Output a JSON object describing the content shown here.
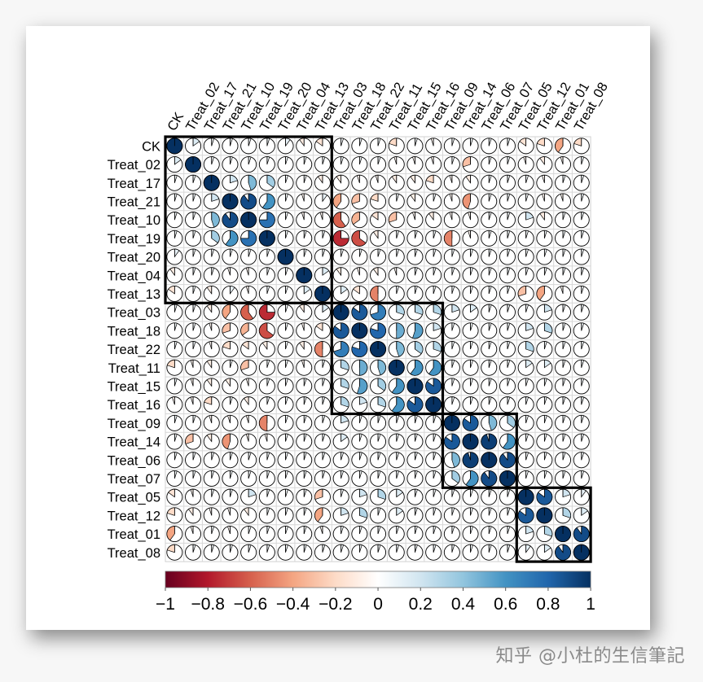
{
  "watermark": "知乎 @小杜的生信筆記",
  "chart_data": {
    "type": "heatmap",
    "subtype": "correlation-matrix-pie",
    "labels": [
      "CK",
      "Treat_02",
      "Treat_17",
      "Treat_21",
      "Treat_10",
      "Treat_19",
      "Treat_20",
      "Treat_04",
      "Treat_13",
      "Treat_03",
      "Treat_18",
      "Treat_22",
      "Treat_11",
      "Treat_15",
      "Treat_16",
      "Treat_09",
      "Treat_14",
      "Treat_06",
      "Treat_07",
      "Treat_05",
      "Treat_12",
      "Treat_01",
      "Treat_08"
    ],
    "color_scale": {
      "min": -1,
      "max": 1,
      "ticks": [
        "−1",
        "−0.8",
        "−0.6",
        "−0.4",
        "−0.2",
        "0",
        "0.2",
        "0.4",
        "0.6",
        "0.8",
        "1"
      ],
      "colors": [
        "#67001f",
        "#b2182b",
        "#d6604d",
        "#f4a582",
        "#fddbc7",
        "#ffffff",
        "#d1e5f0",
        "#92c5de",
        "#4393c3",
        "#2166ac",
        "#053061"
      ]
    },
    "clusters": [
      [
        1,
        9
      ],
      [
        10,
        15
      ],
      [
        16,
        19
      ],
      [
        20,
        23
      ]
    ],
    "upper_values": [
      [
        0.15,
        0.05,
        0.05,
        0.02,
        0.05,
        0.05,
        0.1,
        -0.1,
        0.15,
        0.1,
        -0.1,
        -0.3,
        -0.1,
        -0.05,
        -0.05,
        0.05,
        -0.3,
        -0.1,
        0.15,
        -0.2,
        -0.6,
        -0.2
      ],
      [
        0.1,
        0.05,
        0.05,
        0.05,
        0.05,
        -0.15,
        -0.1,
        -0.1,
        -0.15,
        -0.05,
        -0.05,
        0.05,
        0.05,
        -0.05,
        -0.3,
        -0.1,
        -0.05,
        0.05,
        0.05,
        0.1,
        0.05
      ],
      [
        0.2,
        0.05,
        0.05,
        0.1,
        -0.1,
        -0.05,
        -0.3,
        -0.05,
        -0.1,
        -0.1,
        -0.2,
        0.05,
        0.1,
        -0.1,
        -0.5,
        -0.05,
        -0.05,
        0.15,
        -0.1,
        0.05
      ],
      [
        0.45,
        0.35,
        0.05,
        -0.05,
        0.1,
        -0.4,
        -0.3,
        0.05,
        -0.05,
        0.1,
        -0.3,
        0.05,
        -0.05,
        -0.1,
        -0.05,
        0.15,
        -0.05,
        0.05,
        0.1
      ],
      [
        0.9,
        0.6,
        0.05,
        -0.05,
        -0.05,
        -0.6,
        -0.35,
        -0.15,
        -0.3,
        -0.05,
        -0.1,
        0.05,
        -0.1,
        -0.05,
        -0.1,
        0.1,
        0.05,
        0.15
      ],
      [
        0.75,
        0.05,
        0.05,
        -0.1,
        -0.75,
        -0.65,
        0.05,
        -0.1,
        -0.05,
        0.1,
        -0.05,
        0.05,
        -0.1,
        -0.05,
        0.05,
        0.1,
        0.05
      ],
      [
        0.05,
        0.05,
        0.05,
        0.05,
        0.05,
        0.05,
        0.05,
        0.05,
        0.05,
        0.05,
        0.05,
        0.05,
        0.05,
        0.05,
        0.05,
        0.05
      ],
      [
        0.15,
        0.2,
        0.15,
        0.1,
        0.05,
        0.05,
        0.05,
        0.05,
        -0.05,
        0.05,
        0.05,
        0.05,
        0.05,
        0.05,
        0.05
      ],
      [
        0.15,
        -0.15,
        -0.2,
        -0.5,
        -0.05,
        0.1,
        0.05,
        -0.05,
        0.05,
        0.2,
        0.15,
        -0.2,
        -0.3,
        -0.1,
        0.05,
        0.05,
        0.05,
        0.05,
        0.05,
        0.05,
        0.05,
        0.05
      ],
      [
        -0.3,
        -0.1,
        -0.1,
        -0.2,
        -0.1,
        -0.05,
        0.05,
        0.05,
        -0.05,
        0.05,
        0.05,
        0.05,
        0.05,
        0.05
      ],
      [
        -0.05,
        -0.05,
        0.05,
        0.05,
        0.05,
        -0.05,
        0.05,
        -0.05,
        0.05,
        0.05,
        0.05,
        -0.05,
        0.05
      ]
    ],
    "note_upper_values": "partial upper-triangle estimates per row; remaining cells default to small values",
    "lower_values": [
      [
        0.15
      ],
      [
        0.05,
        0.05
      ],
      [
        0.05,
        0.05,
        0.2
      ],
      [
        0.05,
        0.05,
        0.45,
        0.9
      ],
      [
        0.05,
        0.05,
        0.35,
        0.6,
        0.75
      ],
      [
        0.1,
        0.05,
        0.05,
        0.05,
        0.05,
        0.05
      ],
      [
        -0.1,
        0.05,
        0.05,
        -0.05,
        -0.05,
        0.05,
        0.05
      ],
      [
        -0.15,
        0.05,
        -0.1,
        0.1,
        -0.05,
        0.05,
        0.05,
        0.15
      ],
      [
        0.05,
        0.05,
        -0.1,
        -0.4,
        -0.6,
        -0.75,
        0.05,
        -0.1,
        0.15
      ],
      [
        0.05,
        0.05,
        -0.05,
        -0.3,
        -0.35,
        -0.65,
        0.05,
        -0.05,
        -0.15,
        0.85
      ],
      [
        0.05,
        0.05,
        -0.05,
        -0.2,
        -0.15,
        -0.1,
        0.05,
        -0.1,
        -0.5,
        0.7,
        0.8
      ],
      [
        -0.2,
        -0.05,
        -0.1,
        0.05,
        -0.3,
        0.05,
        0.05,
        -0.05,
        0.05,
        0.3,
        0.5,
        0.45
      ],
      [
        0.05,
        -0.05,
        -0.1,
        -0.1,
        -0.05,
        0.05,
        0.05,
        0.05,
        0.05,
        0.3,
        0.55,
        0.35,
        0.6
      ],
      [
        -0.05,
        -0.05,
        -0.2,
        0.05,
        -0.1,
        0.05,
        0.05,
        0.05,
        0.05,
        0.3,
        0.2,
        0.3,
        0.6,
        0.85
      ],
      [
        0.05,
        0.05,
        -0.05,
        -0.05,
        -0.05,
        -0.5,
        0.05,
        0.05,
        0.05,
        0.2,
        0.05,
        0.05,
        0.05,
        0.05,
        0.05
      ],
      [
        0.05,
        -0.3,
        -0.1,
        -0.45,
        -0.05,
        -0.05,
        0.05,
        0.05,
        0.05,
        0.15,
        0.05,
        0.05,
        0.05,
        0.05,
        0.05,
        0.85
      ],
      [
        0.05,
        0.05,
        0.05,
        0.05,
        0.05,
        0.05,
        0.05,
        0.05,
        0.05,
        0.05,
        0.05,
        0.05,
        0.05,
        0.05,
        0.05,
        0.45,
        0.95
      ],
      [
        0.05,
        0.05,
        0.05,
        0.05,
        0.05,
        0.05,
        0.05,
        0.05,
        0.05,
        0.05,
        0.05,
        0.05,
        0.05,
        0.05,
        0.05,
        0.35,
        0.6,
        0.9
      ],
      [
        -0.15,
        -0.05,
        0.05,
        0.05,
        0.2,
        0.05,
        0.05,
        0.05,
        -0.3,
        0.05,
        0.2,
        0.3,
        0.15,
        0.05,
        0.05,
        0.05,
        0.05,
        0.05,
        0.05
      ],
      [
        -0.2,
        -0.1,
        -0.05,
        -0.05,
        -0.1,
        0.05,
        0.05,
        0.05,
        -0.4,
        0.2,
        0.3,
        0.05,
        0.15,
        0.05,
        0.05,
        0.05,
        0.05,
        0.05,
        0.05,
        0.85
      ],
      [
        -0.4,
        -0.05,
        0.05,
        -0.05,
        0.05,
        0.05,
        0.05,
        0.05,
        -0.05,
        0.05,
        0.05,
        0.05,
        0.05,
        0.05,
        0.05,
        0.05,
        0.05,
        0.05,
        0.05,
        0.2,
        0.3
      ],
      [
        -0.2,
        0.05,
        0.05,
        0.05,
        0.05,
        0.05,
        0.05,
        0.05,
        0.05,
        0.05,
        0.05,
        0.05,
        0.05,
        0.05,
        0.05,
        0.05,
        0.05,
        0.05,
        0.05,
        0.1,
        0.15,
        0.9
      ]
    ]
  }
}
